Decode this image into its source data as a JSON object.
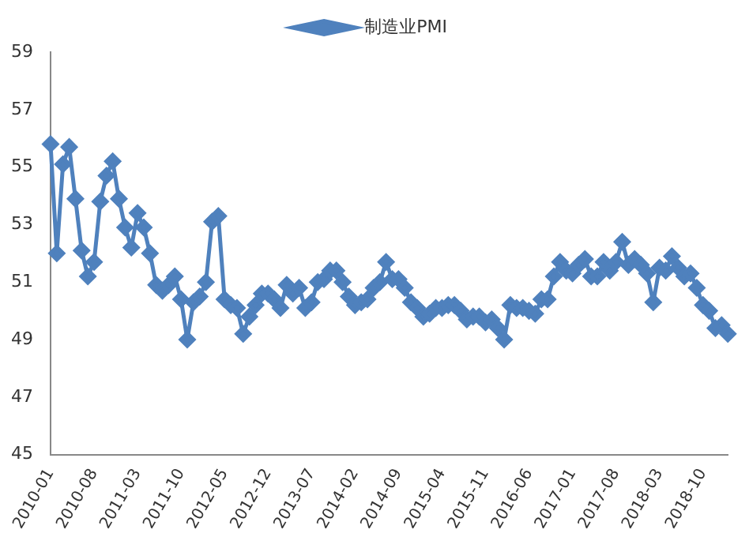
{
  "chart_data": {
    "type": "line",
    "categories": [
      "2010-01",
      null,
      null,
      null,
      null,
      null,
      null,
      "2010-08",
      null,
      null,
      null,
      null,
      null,
      null,
      "2011-03",
      null,
      null,
      null,
      null,
      null,
      null,
      "2011-10",
      null,
      null,
      null,
      null,
      null,
      null,
      "2012-05",
      null,
      null,
      null,
      null,
      null,
      null,
      "2012-12",
      null,
      null,
      null,
      null,
      null,
      null,
      "2013-07",
      null,
      null,
      null,
      null,
      null,
      null,
      "2014-02",
      null,
      null,
      null,
      null,
      null,
      null,
      "2014-09",
      null,
      null,
      null,
      null,
      null,
      null,
      "2015-04",
      null,
      null,
      null,
      null,
      null,
      null,
      "2015-11",
      null,
      null,
      null,
      null,
      null,
      null,
      "2016-06",
      null,
      null,
      null,
      null,
      null,
      null,
      "2017-01",
      null,
      null,
      null,
      null,
      null,
      null,
      "2017-08",
      null,
      null,
      null,
      null,
      null,
      null,
      "2018-03",
      null,
      null,
      null,
      null,
      null,
      null,
      "2018-10",
      null,
      null,
      null,
      null
    ],
    "series": [
      {
        "name": "制造业PMI",
        "color": "#4f81bd",
        "values": [
          55.8,
          52.0,
          55.1,
          55.7,
          53.9,
          52.1,
          51.2,
          51.7,
          53.8,
          54.7,
          55.2,
          53.9,
          52.9,
          52.2,
          53.4,
          52.9,
          52.0,
          50.9,
          50.7,
          50.9,
          51.2,
          50.4,
          49.0,
          50.3,
          50.5,
          51.0,
          53.1,
          53.3,
          50.4,
          50.2,
          50.1,
          49.2,
          49.8,
          50.2,
          50.6,
          50.6,
          50.4,
          50.1,
          50.9,
          50.6,
          50.8,
          50.1,
          50.3,
          51.0,
          51.1,
          51.4,
          51.4,
          51.0,
          50.5,
          50.2,
          50.3,
          50.4,
          50.8,
          51.0,
          51.7,
          51.1,
          51.1,
          50.8,
          50.3,
          50.1,
          49.8,
          49.9,
          50.1,
          50.1,
          50.2,
          50.2,
          50.0,
          49.7,
          49.8,
          49.8,
          49.6,
          49.7,
          49.4,
          49.0,
          50.2,
          50.1,
          50.1,
          50.0,
          49.9,
          50.4,
          50.4,
          51.2,
          51.7,
          51.4,
          51.3,
          51.6,
          51.8,
          51.2,
          51.2,
          51.7,
          51.4,
          51.7,
          52.4,
          51.6,
          51.8,
          51.6,
          51.3,
          50.3,
          51.5,
          51.4,
          51.9,
          51.5,
          51.2,
          51.3,
          50.8,
          50.2,
          50.0,
          49.4,
          49.5,
          49.2
        ]
      }
    ],
    "ylim": [
      45,
      59
    ],
    "yticks": [
      45,
      47,
      49,
      51,
      53,
      55,
      57,
      59
    ],
    "grid": false,
    "legend": "top",
    "marker": "diamond",
    "line_style": "solid"
  }
}
